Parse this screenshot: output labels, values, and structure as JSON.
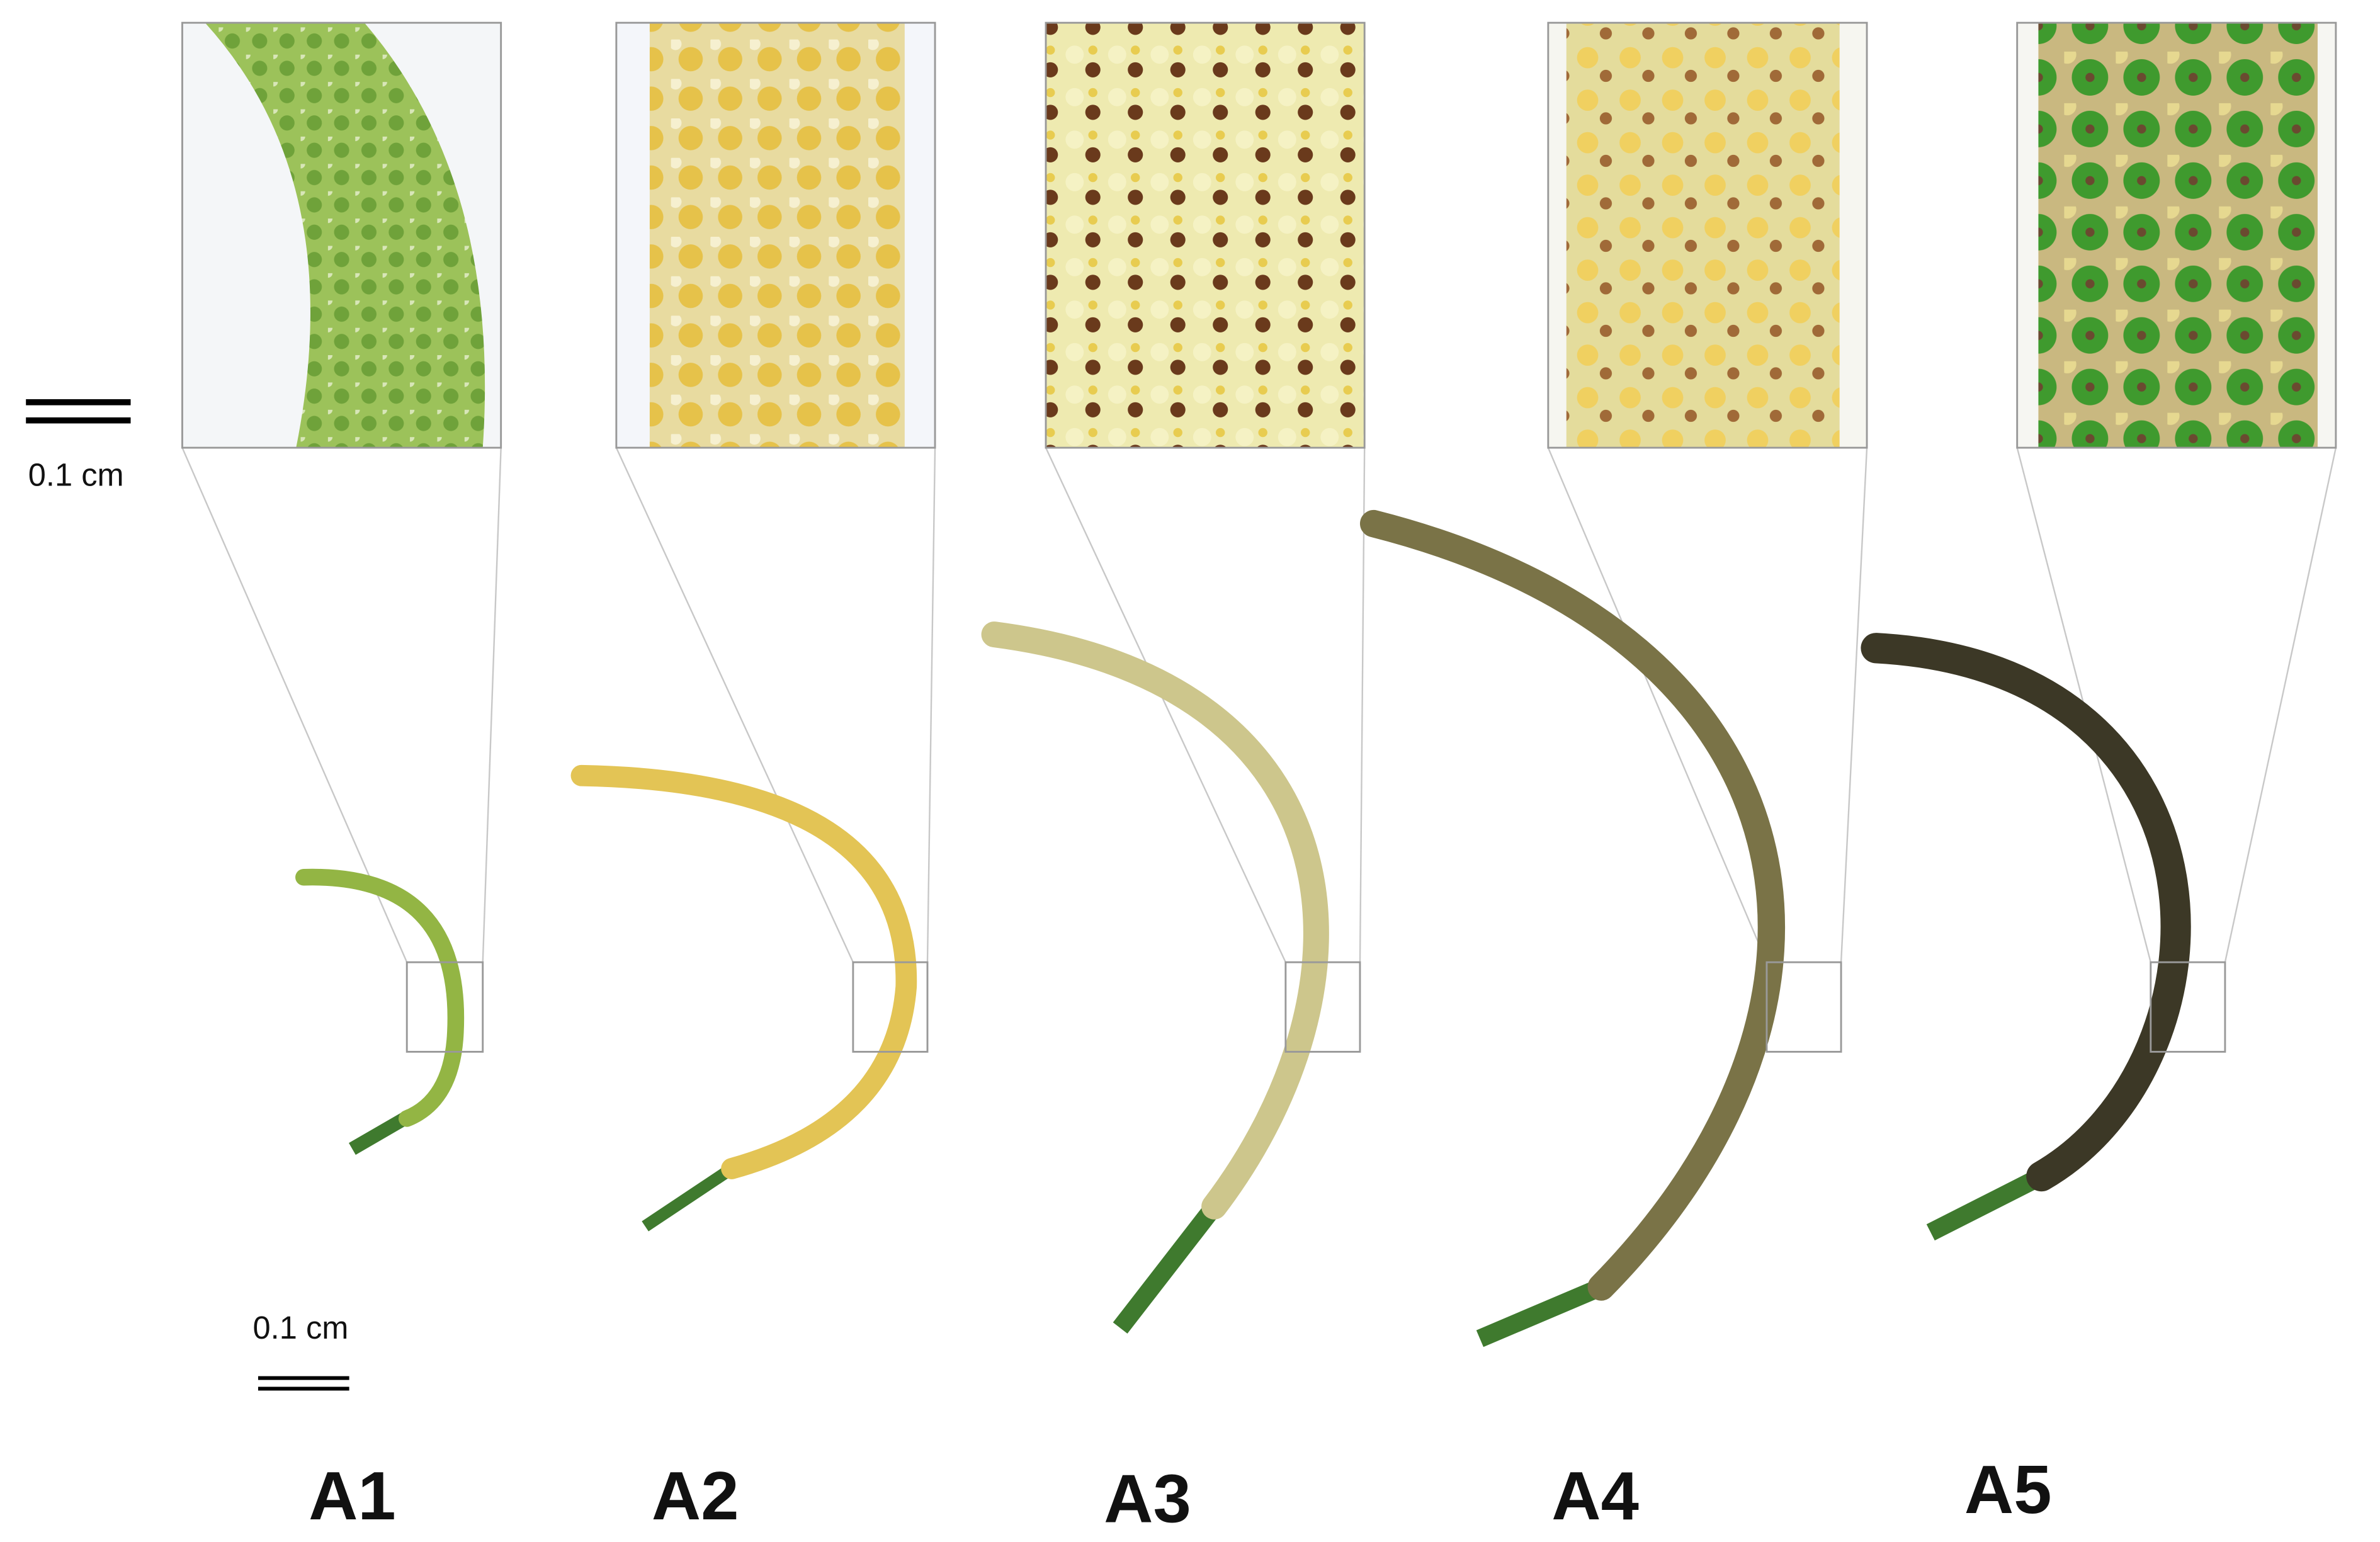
{
  "scale_bars": {
    "top": "0.1 cm",
    "bottom": "0.1 cm"
  },
  "panels": [
    {
      "label": "A1"
    },
    {
      "label": "A2"
    },
    {
      "label": "A3"
    },
    {
      "label": "A4"
    },
    {
      "label": "A5"
    }
  ]
}
